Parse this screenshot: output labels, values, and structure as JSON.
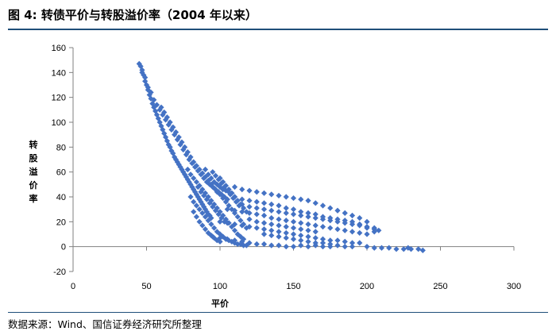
{
  "figure": {
    "title": "图 4:  转债平价与转股溢价率（2004 年以来）",
    "source": "数据来源：Wind、国信证券经济研究所整理"
  },
  "chart_data": {
    "type": "scatter",
    "xlabel": "平价",
    "ylabel": "转股溢价率",
    "xlim": [
      0,
      300
    ],
    "ylim": [
      -20,
      160
    ],
    "xticks": [
      0,
      50,
      100,
      150,
      200,
      250,
      300
    ],
    "yticks": [
      -20,
      0,
      20,
      40,
      60,
      80,
      100,
      120,
      140,
      160
    ],
    "grid": false,
    "marker_color": "#4472c4",
    "marker": "diamond",
    "points": [
      [
        45,
        147
      ],
      [
        46,
        145
      ],
      [
        47,
        142
      ],
      [
        48,
        138
      ],
      [
        49,
        133
      ],
      [
        50,
        130
      ],
      [
        51,
        126
      ],
      [
        52,
        122
      ],
      [
        53,
        119
      ],
      [
        54,
        115
      ],
      [
        55,
        112
      ],
      [
        56,
        109
      ],
      [
        57,
        106
      ],
      [
        58,
        103
      ],
      [
        59,
        100
      ],
      [
        60,
        97
      ],
      [
        61,
        94
      ],
      [
        62,
        91
      ],
      [
        63,
        88
      ],
      [
        64,
        85
      ],
      [
        65,
        82
      ],
      [
        66,
        80
      ],
      [
        67,
        77
      ],
      [
        68,
        75
      ],
      [
        69,
        72
      ],
      [
        70,
        70
      ],
      [
        71,
        68
      ],
      [
        72,
        66
      ],
      [
        73,
        64
      ],
      [
        74,
        62
      ],
      [
        75,
        60
      ],
      [
        76,
        58
      ],
      [
        77,
        56
      ],
      [
        78,
        54
      ],
      [
        79,
        52
      ],
      [
        80,
        50
      ],
      [
        81,
        48
      ],
      [
        82,
        46
      ],
      [
        83,
        44
      ],
      [
        84,
        42
      ],
      [
        85,
        40
      ],
      [
        86,
        38
      ],
      [
        87,
        36
      ],
      [
        88,
        34
      ],
      [
        89,
        32
      ],
      [
        90,
        30
      ],
      [
        91,
        28
      ],
      [
        92,
        26
      ],
      [
        93,
        25
      ],
      [
        94,
        23
      ],
      [
        47,
        140
      ],
      [
        49,
        136
      ],
      [
        51,
        128
      ],
      [
        53,
        124
      ],
      [
        55,
        118
      ],
      [
        57,
        114
      ],
      [
        59,
        110
      ],
      [
        61,
        106
      ],
      [
        63,
        102
      ],
      [
        65,
        98
      ],
      [
        67,
        94
      ],
      [
        69,
        90
      ],
      [
        71,
        86
      ],
      [
        73,
        82
      ],
      [
        75,
        78
      ],
      [
        77,
        74
      ],
      [
        79,
        70
      ],
      [
        81,
        67
      ],
      [
        83,
        64
      ],
      [
        85,
        61
      ],
      [
        87,
        58
      ],
      [
        89,
        55
      ],
      [
        91,
        52
      ],
      [
        93,
        50
      ],
      [
        95,
        48
      ],
      [
        97,
        46
      ],
      [
        99,
        44
      ],
      [
        101,
        42
      ],
      [
        103,
        40
      ],
      [
        105,
        38
      ],
      [
        60,
        112
      ],
      [
        62,
        108
      ],
      [
        64,
        104
      ],
      [
        66,
        100
      ],
      [
        68,
        96
      ],
      [
        70,
        92
      ],
      [
        72,
        88
      ],
      [
        74,
        84
      ],
      [
        76,
        80
      ],
      [
        78,
        76
      ],
      [
        80,
        72
      ],
      [
        82,
        68
      ],
      [
        84,
        65
      ],
      [
        86,
        62
      ],
      [
        88,
        59
      ],
      [
        90,
        56
      ],
      [
        92,
        53
      ],
      [
        94,
        50
      ],
      [
        96,
        47
      ],
      [
        98,
        44
      ],
      [
        100,
        42
      ],
      [
        102,
        39
      ],
      [
        104,
        36
      ],
      [
        106,
        33
      ],
      [
        108,
        30
      ],
      [
        110,
        27
      ],
      [
        112,
        24
      ],
      [
        114,
        21
      ],
      [
        116,
        18
      ],
      [
        118,
        15
      ],
      [
        78,
        62
      ],
      [
        80,
        58
      ],
      [
        82,
        55
      ],
      [
        84,
        52
      ],
      [
        86,
        49
      ],
      [
        88,
        46
      ],
      [
        90,
        43
      ],
      [
        92,
        40
      ],
      [
        94,
        37
      ],
      [
        96,
        34
      ],
      [
        98,
        31
      ],
      [
        100,
        28
      ],
      [
        102,
        25
      ],
      [
        104,
        22
      ],
      [
        106,
        19
      ],
      [
        108,
        16
      ],
      [
        110,
        13
      ],
      [
        112,
        10
      ],
      [
        114,
        8
      ],
      [
        116,
        6
      ],
      [
        80,
        40
      ],
      [
        82,
        36
      ],
      [
        84,
        33
      ],
      [
        86,
        30
      ],
      [
        88,
        27
      ],
      [
        90,
        24
      ],
      [
        92,
        21
      ],
      [
        94,
        18
      ],
      [
        96,
        15
      ],
      [
        98,
        12
      ],
      [
        100,
        10
      ],
      [
        102,
        8
      ],
      [
        104,
        6
      ],
      [
        106,
        5
      ],
      [
        108,
        4
      ],
      [
        110,
        3
      ],
      [
        112,
        2
      ],
      [
        114,
        2
      ],
      [
        116,
        1
      ],
      [
        118,
        1
      ],
      [
        82,
        28
      ],
      [
        84,
        24
      ],
      [
        86,
        20
      ],
      [
        88,
        17
      ],
      [
        90,
        14
      ],
      [
        92,
        11
      ],
      [
        94,
        9
      ],
      [
        96,
        7
      ],
      [
        98,
        5
      ],
      [
        100,
        4
      ],
      [
        85,
        48
      ],
      [
        87,
        44
      ],
      [
        89,
        41
      ],
      [
        91,
        38
      ],
      [
        93,
        35
      ],
      [
        95,
        32
      ],
      [
        97,
        29
      ],
      [
        99,
        26
      ],
      [
        101,
        23
      ],
      [
        103,
        20
      ],
      [
        90,
        62
      ],
      [
        92,
        58
      ],
      [
        94,
        55
      ],
      [
        96,
        52
      ],
      [
        98,
        50
      ],
      [
        100,
        48
      ],
      [
        102,
        46
      ],
      [
        104,
        45
      ],
      [
        106,
        44
      ],
      [
        108,
        43
      ],
      [
        95,
        60
      ],
      [
        97,
        57
      ],
      [
        99,
        54
      ],
      [
        101,
        51
      ],
      [
        103,
        48
      ],
      [
        105,
        45
      ],
      [
        107,
        42
      ],
      [
        109,
        39
      ],
      [
        111,
        36
      ],
      [
        113,
        33
      ],
      [
        100,
        55
      ],
      [
        102,
        52
      ],
      [
        104,
        49
      ],
      [
        106,
        46
      ],
      [
        108,
        43
      ],
      [
        110,
        40
      ],
      [
        112,
        37
      ],
      [
        114,
        34
      ],
      [
        116,
        31
      ],
      [
        118,
        28
      ],
      [
        110,
        48
      ],
      [
        115,
        46
      ],
      [
        120,
        45
      ],
      [
        125,
        44
      ],
      [
        130,
        43
      ],
      [
        135,
        42
      ],
      [
        140,
        41
      ],
      [
        145,
        40
      ],
      [
        150,
        39
      ],
      [
        155,
        38
      ],
      [
        160,
        37
      ],
      [
        165,
        35
      ],
      [
        170,
        33
      ],
      [
        175,
        31
      ],
      [
        180,
        29
      ],
      [
        185,
        27
      ],
      [
        190,
        25
      ],
      [
        195,
        23
      ],
      [
        200,
        20
      ],
      [
        205,
        15
      ],
      [
        110,
        40
      ],
      [
        115,
        38
      ],
      [
        120,
        37
      ],
      [
        125,
        36
      ],
      [
        130,
        35
      ],
      [
        135,
        34
      ],
      [
        140,
        33
      ],
      [
        145,
        31
      ],
      [
        150,
        30
      ],
      [
        155,
        28
      ],
      [
        160,
        27
      ],
      [
        165,
        26
      ],
      [
        170,
        24
      ],
      [
        175,
        23
      ],
      [
        180,
        22
      ],
      [
        185,
        21
      ],
      [
        190,
        20
      ],
      [
        195,
        18
      ],
      [
        200,
        15
      ],
      [
        205,
        12
      ],
      [
        105,
        30
      ],
      [
        110,
        29
      ],
      [
        115,
        28
      ],
      [
        120,
        27
      ],
      [
        125,
        26
      ],
      [
        130,
        25
      ],
      [
        135,
        23
      ],
      [
        140,
        22
      ],
      [
        145,
        21
      ],
      [
        150,
        20
      ],
      [
        155,
        19
      ],
      [
        160,
        18
      ],
      [
        165,
        17
      ],
      [
        170,
        16
      ],
      [
        175,
        15
      ],
      [
        180,
        14
      ],
      [
        185,
        13
      ],
      [
        190,
        12
      ],
      [
        195,
        11
      ],
      [
        200,
        10
      ],
      [
        100,
        20
      ],
      [
        105,
        19
      ],
      [
        110,
        18
      ],
      [
        115,
        17
      ],
      [
        120,
        16
      ],
      [
        125,
        15
      ],
      [
        130,
        14
      ],
      [
        135,
        13
      ],
      [
        140,
        12
      ],
      [
        145,
        11
      ],
      [
        150,
        10
      ],
      [
        155,
        9
      ],
      [
        160,
        8
      ],
      [
        165,
        7
      ],
      [
        170,
        6
      ],
      [
        175,
        5
      ],
      [
        180,
        5
      ],
      [
        185,
        4
      ],
      [
        190,
        3
      ],
      [
        195,
        3
      ],
      [
        95,
        8
      ],
      [
        100,
        7
      ],
      [
        105,
        6
      ],
      [
        110,
        5
      ],
      [
        115,
        4
      ],
      [
        120,
        3
      ],
      [
        125,
        2
      ],
      [
        130,
        2
      ],
      [
        135,
        1
      ],
      [
        140,
        1
      ],
      [
        145,
        0
      ],
      [
        150,
        0
      ],
      [
        155,
        1
      ],
      [
        160,
        0
      ],
      [
        165,
        1
      ],
      [
        170,
        0
      ],
      [
        175,
        0
      ],
      [
        180,
        1
      ],
      [
        185,
        0
      ],
      [
        190,
        0
      ],
      [
        120,
        22
      ],
      [
        125,
        20
      ],
      [
        130,
        19
      ],
      [
        135,
        18
      ],
      [
        140,
        17
      ],
      [
        145,
        16
      ],
      [
        150,
        15
      ],
      [
        155,
        14
      ],
      [
        160,
        13
      ],
      [
        165,
        12
      ],
      [
        115,
        34
      ],
      [
        120,
        32
      ],
      [
        125,
        31
      ],
      [
        130,
        30
      ],
      [
        135,
        29
      ],
      [
        140,
        28
      ],
      [
        145,
        27
      ],
      [
        150,
        26
      ],
      [
        155,
        25
      ],
      [
        160,
        24
      ],
      [
        165,
        23
      ],
      [
        170,
        22
      ],
      [
        175,
        21
      ],
      [
        180,
        20
      ],
      [
        185,
        19
      ],
      [
        190,
        18
      ],
      [
        195,
        17
      ],
      [
        200,
        16
      ],
      [
        205,
        14
      ],
      [
        208,
        13
      ],
      [
        130,
        10
      ],
      [
        135,
        9
      ],
      [
        140,
        8
      ],
      [
        145,
        7
      ],
      [
        150,
        6
      ],
      [
        155,
        5
      ],
      [
        160,
        4
      ],
      [
        165,
        3
      ],
      [
        170,
        3
      ],
      [
        175,
        2
      ],
      [
        200,
        0
      ],
      [
        205,
        -1
      ],
      [
        210,
        -1
      ],
      [
        215,
        -1
      ],
      [
        220,
        -2
      ],
      [
        225,
        -2
      ],
      [
        228,
        -1
      ],
      [
        230,
        -2
      ],
      [
        235,
        -2
      ],
      [
        238,
        -3
      ]
    ]
  }
}
